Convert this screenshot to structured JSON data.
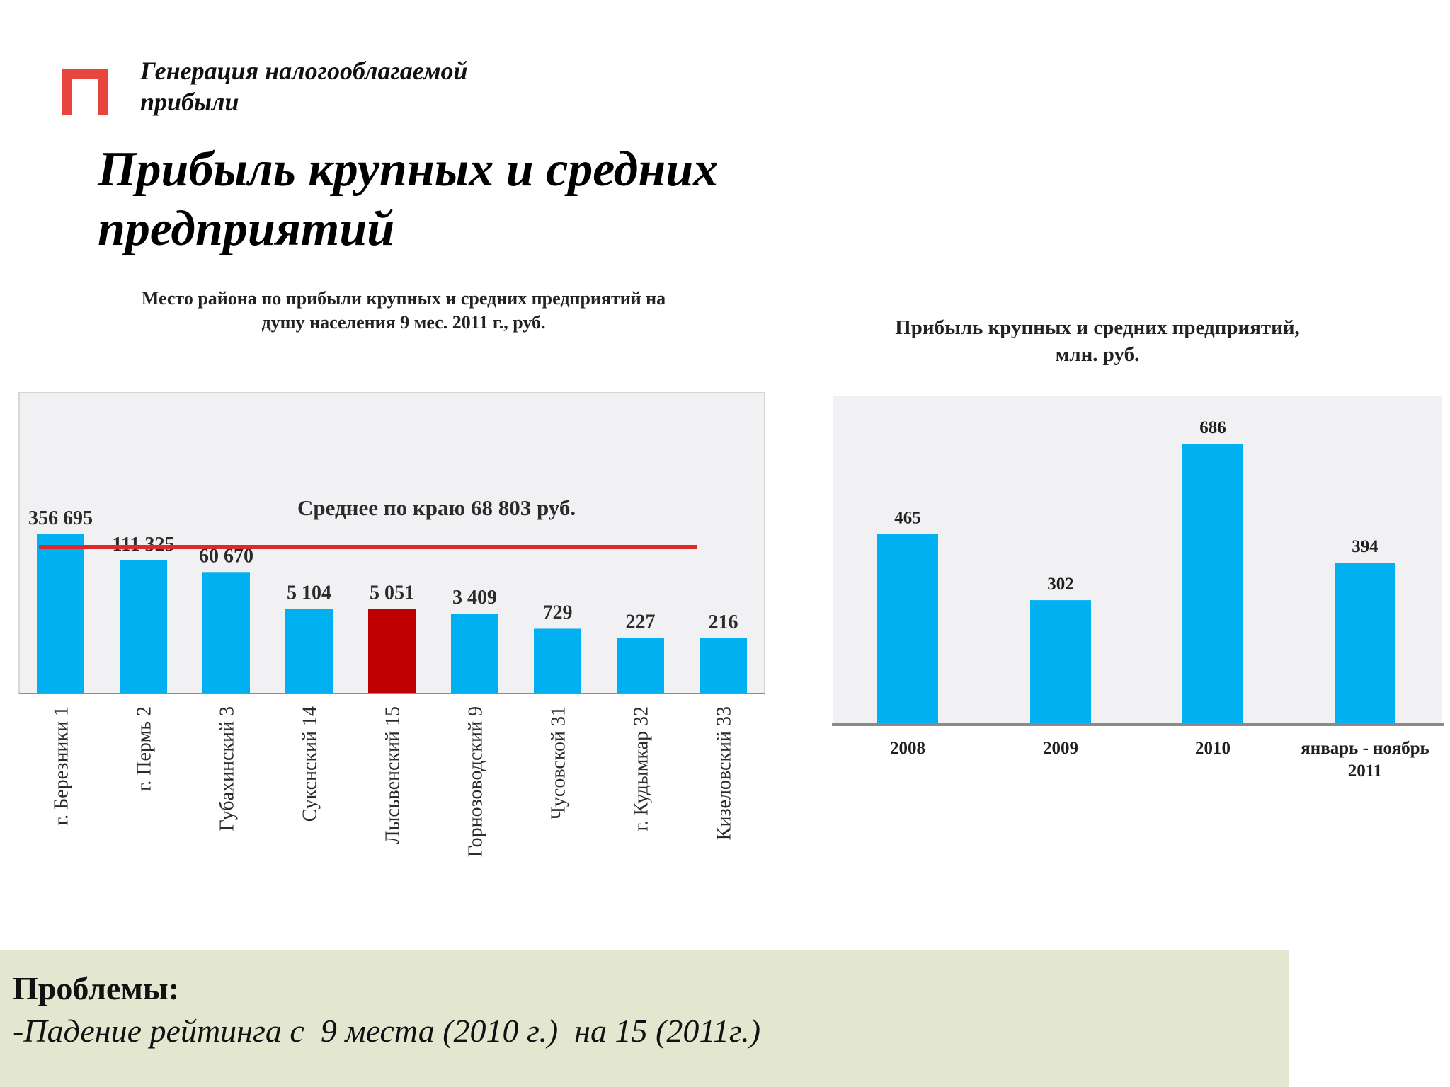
{
  "header": {
    "subtitle_line1": "Генерация налогооблагаемой",
    "subtitle_line2": "прибыли",
    "logo_color": "#e8453c"
  },
  "slide": {
    "title_line1": "Прибыль крупных и средних",
    "title_line2": "предприятий"
  },
  "chart_data": [
    {
      "type": "bar",
      "title_line1": "Место района по прибыли крупных и средних предприятий на",
      "title_line2": "душу населения 9 мес. 2011 г., руб.",
      "categories": [
        "г. Березники 1",
        "г. Пермь 2",
        "Губахинский 3",
        "Сукснский 14",
        "Лысьвенский 15",
        "Горнозоводский 9",
        "Чусовской 31",
        "г. Кудымкар 32",
        "Кизеловский 33"
      ],
      "values": [
        356695,
        111325,
        60670,
        5104,
        5051,
        3409,
        729,
        227,
        216
      ],
      "value_labels": [
        "356 695",
        "111 325",
        "60 670",
        "5 104",
        "5 051",
        "3 409",
        "729",
        "227",
        "216"
      ],
      "highlight_index": 4,
      "bar_color": "#00b0f0",
      "highlight_color": "#c00000",
      "average_label": "Среднее по краю 68 803 руб.",
      "average_value": 68803,
      "average_line_color": "#e02828",
      "scale": "nonlinear (bars not to scale)"
    },
    {
      "type": "bar",
      "title_line1": "Прибыль крупных и средних предприятий,",
      "title_line2": "млн. руб.",
      "categories": [
        "2008",
        "2009",
        "2010",
        "январь - ноябрь 2011"
      ],
      "category_lines": [
        [
          "2008"
        ],
        [
          "2009"
        ],
        [
          "2010"
        ],
        [
          "январь - ноябрь",
          "2011"
        ]
      ],
      "values": [
        465,
        302,
        686,
        394
      ],
      "ylim": [
        0,
        750
      ],
      "bar_color": "#00b0f0"
    }
  ],
  "problems": {
    "heading": "Проблемы:",
    "item": "-Падение рейтинга с  9 места (2010 г.)  на 15 (2011г.)"
  }
}
